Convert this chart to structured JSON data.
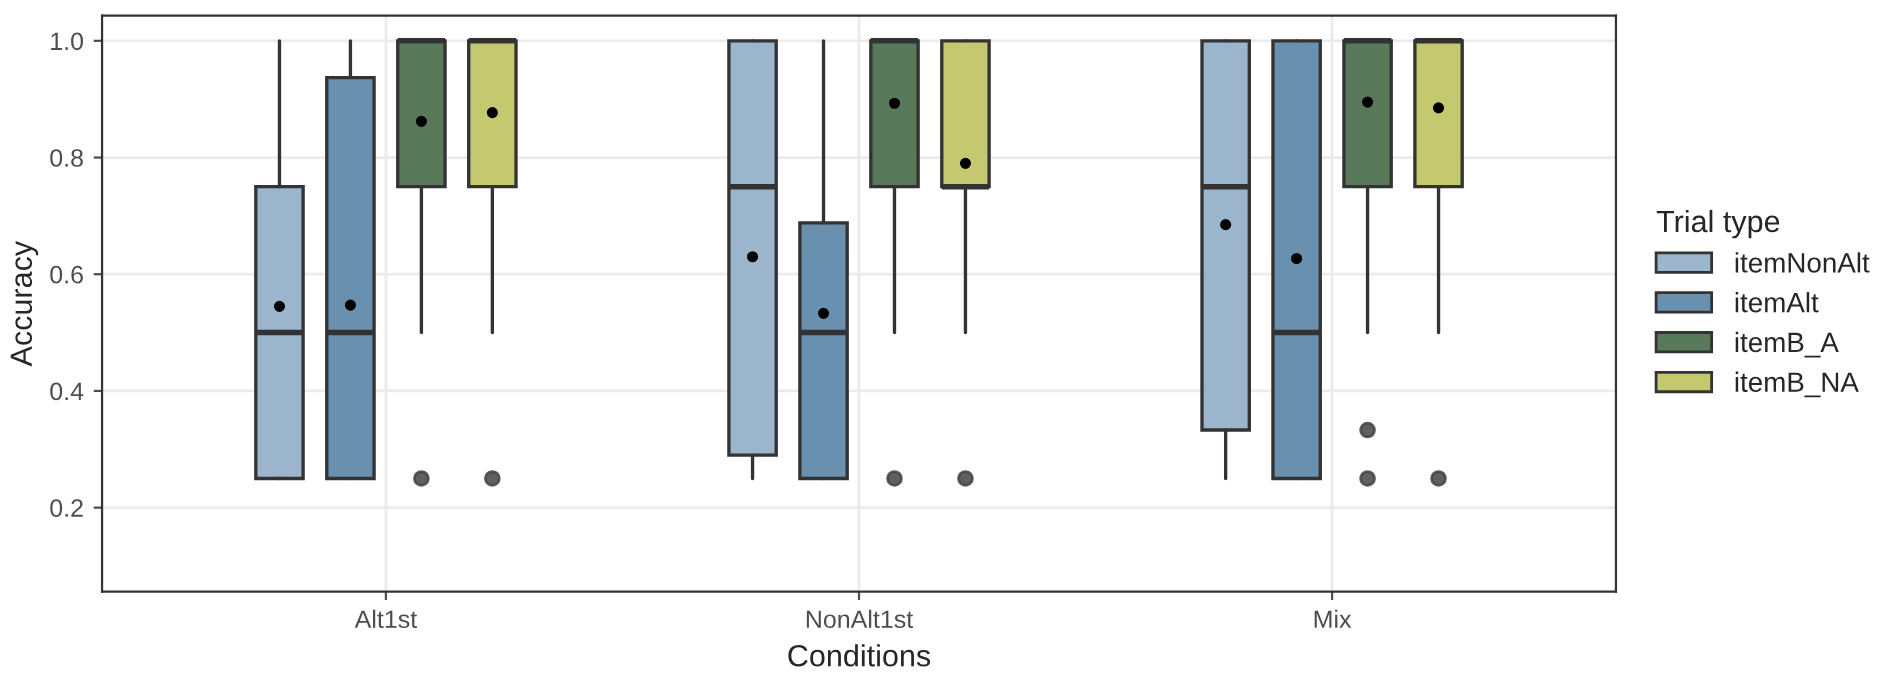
{
  "chart_data": {
    "type": "box",
    "xlabel": "Conditions",
    "ylabel": "Accuracy",
    "legend_title": "Trial type",
    "legend": "right",
    "grid": true,
    "categories": [
      "Alt1st",
      "NonAlt1st",
      "Mix"
    ],
    "ylim": [
      0.056,
      1.043
    ],
    "yticks": [
      {
        "value": 0.2,
        "label": "0.2"
      },
      {
        "value": 0.4,
        "label": "0.4"
      },
      {
        "value": 0.6,
        "label": "0.6"
      },
      {
        "value": 0.8,
        "label": "0.8"
      },
      {
        "value": 1.0,
        "label": "1.0"
      }
    ],
    "series": [
      {
        "name": "itemNonAlt",
        "color": "#9ab5cc",
        "boxes": [
          {
            "low": 0.25,
            "q1": 0.25,
            "median": 0.5,
            "q3": 0.75,
            "high": 1.0,
            "mean": 0.545
          },
          {
            "low": 0.25,
            "q1": 0.29,
            "median": 0.75,
            "q3": 1.0,
            "high": 1.0,
            "mean": 0.63
          },
          {
            "low": 0.25,
            "q1": 0.333,
            "median": 0.75,
            "q3": 1.0,
            "high": 1.0,
            "mean": 0.685
          }
        ]
      },
      {
        "name": "itemAlt",
        "color": "#6a90b0",
        "boxes": [
          {
            "low": 0.25,
            "q1": 0.25,
            "median": 0.5,
            "q3": 0.937,
            "high": 1.0,
            "mean": 0.547
          },
          {
            "low": 0.25,
            "q1": 0.25,
            "median": 0.5,
            "q3": 0.688,
            "high": 1.0,
            "mean": 0.533
          },
          {
            "low": 0.25,
            "q1": 0.25,
            "median": 0.5,
            "q3": 1.0,
            "high": 1.0,
            "mean": 0.627
          }
        ]
      },
      {
        "name": "itemB_A",
        "color": "#587a5a",
        "boxes": [
          {
            "low": 0.5,
            "q1": 0.75,
            "median": 1.0,
            "q3": 1.0,
            "high": 1.0,
            "mean": 0.862,
            "outliers": [
              0.25
            ]
          },
          {
            "low": 0.5,
            "q1": 0.75,
            "median": 1.0,
            "q3": 1.0,
            "high": 1.0,
            "mean": 0.893,
            "outliers": [
              0.25
            ]
          },
          {
            "low": 0.5,
            "q1": 0.75,
            "median": 1.0,
            "q3": 1.0,
            "high": 1.0,
            "mean": 0.895,
            "outliers": [
              0.333,
              0.25
            ]
          }
        ]
      },
      {
        "name": "itemB_NA",
        "color": "#c4c86e",
        "boxes": [
          {
            "low": 0.5,
            "q1": 0.75,
            "median": 1.0,
            "q3": 1.0,
            "high": 1.0,
            "mean": 0.877,
            "outliers": [
              0.25
            ]
          },
          {
            "low": 0.5,
            "q1": 0.75,
            "median": 0.75,
            "q3": 1.0,
            "high": 1.0,
            "mean": 0.79,
            "outliers": [
              0.25
            ]
          },
          {
            "low": 0.5,
            "q1": 0.75,
            "median": 1.0,
            "q3": 1.0,
            "high": 1.0,
            "mean": 0.885,
            "outliers": [
              0.25
            ]
          }
        ]
      }
    ]
  }
}
